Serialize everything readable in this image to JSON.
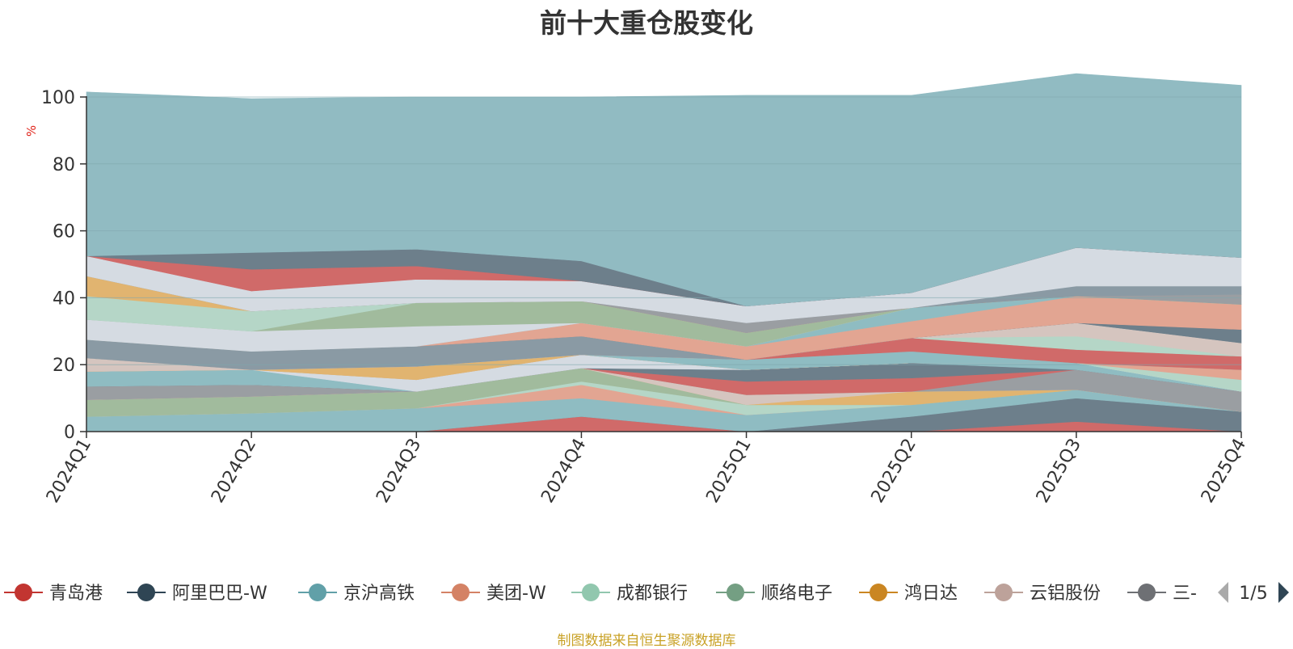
{
  "title": "前十大重仓股变化",
  "source_note": "制图数据来自恒生聚源数据库",
  "colors": {
    "top_band": "#91bbc2",
    "axis": "#333333",
    "grid": "#7fa6ad",
    "ylabel": "#e0241b",
    "source": "#c9a227"
  },
  "legend": {
    "page_indicator": "1/5",
    "prev_icon": "triangle-left-icon",
    "next_icon": "triangle-right-icon",
    "items": [
      {
        "label": "青岛港",
        "color": "#c23531"
      },
      {
        "label": "阿里巴巴-W",
        "color": "#2f4554"
      },
      {
        "label": "京沪高铁",
        "color": "#61a0a8"
      },
      {
        "label": "美团-W",
        "color": "#d48265"
      },
      {
        "label": "成都银行",
        "color": "#91c7ae"
      },
      {
        "label": "顺络电子",
        "color": "#749f83"
      },
      {
        "label": "鸿日达",
        "color": "#ca8622"
      },
      {
        "label": "云铝股份",
        "color": "#bda29a"
      },
      {
        "label": "三-",
        "color": "#6e7074"
      }
    ]
  },
  "chart_data": {
    "type": "area",
    "stacked": true,
    "title": "前十大重仓股变化",
    "xlabel": "",
    "ylabel": "%",
    "ylim": [
      0,
      100
    ],
    "yticks": [
      0,
      20,
      40,
      60,
      80,
      100
    ],
    "grid": true,
    "legend_position": "bottom",
    "categories": [
      "2024Q1",
      "2024Q2",
      "2024Q3",
      "2024Q4",
      "2025Q1",
      "2025Q2",
      "2025Q3",
      "2025Q4"
    ],
    "series": [
      {
        "name": "",
        "color": "#d06a69",
        "values": [
          0,
          0,
          0,
          4.5,
          0,
          0,
          3,
          0
        ]
      },
      {
        "name": "",
        "color": "#6d7f8b",
        "values": [
          0,
          0,
          0,
          0,
          0,
          4.5,
          7,
          6
        ]
      },
      {
        "name": "",
        "color": "#8fbcc2",
        "values": [
          4.5,
          5.5,
          7,
          5.5,
          5,
          3.5,
          2.5,
          0
        ]
      },
      {
        "name": "",
        "color": "#e2a592",
        "values": [
          0,
          0,
          0,
          4,
          0,
          0,
          0,
          0
        ]
      },
      {
        "name": "",
        "color": "#b5d6c7",
        "values": [
          0,
          0,
          0,
          1,
          3,
          0,
          0,
          0
        ]
      },
      {
        "name": "",
        "color": "#a1bb9d",
        "values": [
          5,
          5,
          5,
          4,
          0,
          0,
          0,
          0
        ]
      },
      {
        "name": "",
        "color": "#e1b470",
        "values": [
          0,
          0,
          0,
          0,
          0,
          4,
          0,
          0
        ]
      },
      {
        "name": "",
        "color": "#d5c5bf",
        "values": [
          0,
          0,
          0,
          0,
          3,
          0,
          0,
          0
        ]
      },
      {
        "name": "",
        "color": "#9a9ea2",
        "values": [
          4,
          3.5,
          0,
          0,
          0,
          0,
          6,
          6
        ]
      },
      {
        "name": "",
        "color": "#d06a69",
        "values": [
          0,
          0,
          0,
          0,
          4,
          4,
          0,
          0
        ]
      },
      {
        "name": "",
        "color": "#6d7f8b",
        "values": [
          0,
          0,
          0,
          0,
          3.5,
          4.5,
          0,
          0
        ]
      },
      {
        "name": "",
        "color": "#8fbcc2",
        "values": [
          4.5,
          4.5,
          0,
          0,
          0,
          0,
          2,
          0
        ]
      },
      {
        "name": "",
        "color": "#d5dbe2",
        "values": [
          0,
          0,
          3.5,
          4,
          0,
          0,
          0,
          0
        ]
      },
      {
        "name": "",
        "color": "#b5d6c7",
        "values": [
          0,
          0,
          0,
          0,
          0,
          0,
          0,
          3.5
        ]
      },
      {
        "name": "",
        "color": "#e2a592",
        "values": [
          0,
          0,
          0,
          0,
          0,
          0,
          0,
          3
        ]
      },
      {
        "name": "",
        "color": "#e1b470",
        "values": [
          0,
          0,
          4,
          0,
          0,
          0,
          0,
          0
        ]
      },
      {
        "name": "",
        "color": "#d5c5bf",
        "values": [
          4,
          0,
          0,
          0,
          0,
          0,
          0,
          0
        ]
      },
      {
        "name": "",
        "color": "#8fbcc2",
        "values": [
          0,
          0,
          0,
          0,
          3,
          3.5,
          0,
          0
        ]
      },
      {
        "name": "",
        "color": "#d06a69",
        "values": [
          0,
          0,
          0,
          0,
          0,
          4,
          4,
          4
        ]
      },
      {
        "name": "",
        "color": "#b5d6c7",
        "values": [
          0,
          0,
          0,
          0,
          0,
          0,
          4,
          0
        ]
      },
      {
        "name": "",
        "color": "#d5c5bf",
        "values": [
          0,
          0,
          0,
          0,
          0,
          0,
          4,
          4
        ]
      },
      {
        "name": "",
        "color": "#8a9aa4",
        "values": [
          5.5,
          5.5,
          6,
          5.5,
          0,
          0,
          0,
          0
        ]
      },
      {
        "name": "",
        "color": "#6d7f8b",
        "values": [
          0,
          0,
          0,
          0,
          0,
          0,
          0,
          4
        ]
      },
      {
        "name": "",
        "color": "#e2a592",
        "values": [
          0,
          0,
          0,
          4,
          4,
          5,
          8,
          7.5
        ]
      },
      {
        "name": "",
        "color": "#8fbcc2",
        "values": [
          0,
          0,
          0,
          0,
          0,
          4,
          0,
          0
        ]
      },
      {
        "name": "",
        "color": "#d5dbe2",
        "values": [
          6,
          6,
          6,
          0,
          0,
          0,
          0,
          0
        ]
      },
      {
        "name": "",
        "color": "#a1bb9d",
        "values": [
          0,
          0,
          7,
          6.5,
          4,
          0,
          0,
          0
        ]
      },
      {
        "name": "",
        "color": "#b5d6c7",
        "values": [
          7,
          6,
          0,
          0,
          0,
          0,
          0,
          0
        ]
      },
      {
        "name": "",
        "color": "#e1b470",
        "values": [
          6,
          0,
          0,
          0,
          0,
          0,
          0,
          0
        ]
      },
      {
        "name": "",
        "color": "#9a9ea2",
        "values": [
          0,
          0,
          0,
          0,
          3,
          0,
          0,
          3
        ]
      },
      {
        "name": "",
        "color": "#8a9aa4",
        "values": [
          0,
          0,
          0,
          0,
          0,
          0,
          3,
          2.5
        ]
      },
      {
        "name": "",
        "color": "#d5dbe2",
        "values": [
          6,
          6,
          7,
          6,
          5,
          4.5,
          11.5,
          8.5
        ]
      },
      {
        "name": "",
        "color": "#d06a69",
        "values": [
          0,
          6.5,
          4,
          0,
          0,
          0,
          0,
          0
        ]
      },
      {
        "name": "",
        "color": "#6d7f8b",
        "values": [
          0,
          5,
          5,
          6,
          0,
          0,
          0,
          0
        ]
      },
      {
        "name": "",
        "color": "#91bbc2",
        "values": [
          49,
          46,
          45.5,
          49,
          63,
          59,
          52,
          51.5
        ]
      }
    ]
  }
}
